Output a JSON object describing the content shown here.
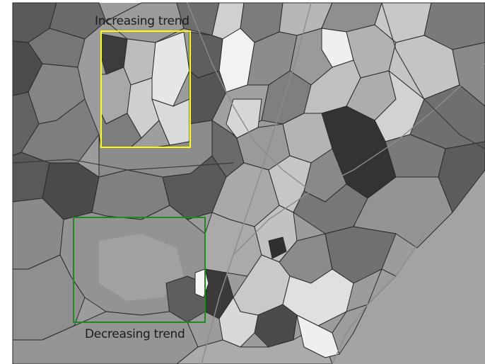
{
  "annotations": {
    "increasing": {
      "label": "Increasing trend",
      "box_color": "#ffff00"
    },
    "decreasing": {
      "label": "Decreasing trend",
      "box_color": "#1f8a1f"
    }
  },
  "colors": {
    "background": "#ffffff",
    "sea": "#9a9a9a",
    "border": "#2a2a2a"
  }
}
